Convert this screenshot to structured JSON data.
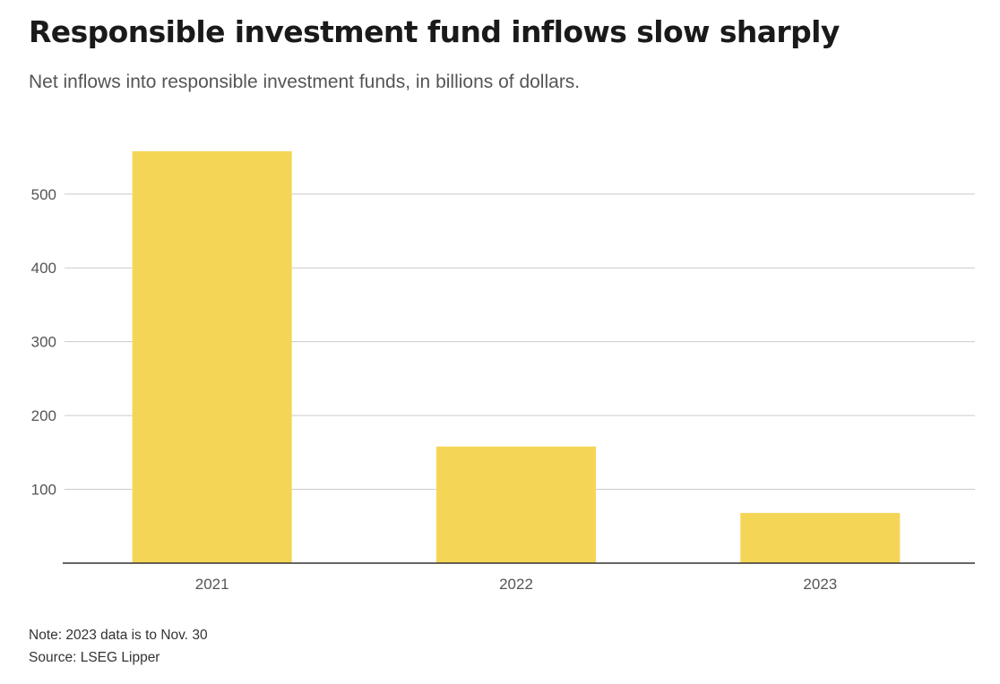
{
  "header": {
    "title": "Responsible investment fund inflows slow sharply",
    "subtitle": "Net inflows into responsible investment funds, in billions of dollars."
  },
  "footer": {
    "note": "Note: 2023 data is to Nov. 30",
    "source": "Source: LSEG Lipper"
  },
  "colors": {
    "bar": "#f5d555",
    "grid": "#cccccc",
    "axis": "#333333"
  },
  "chart_data": {
    "type": "bar",
    "title": "Responsible investment fund inflows slow sharply",
    "subtitle": "Net inflows into responsible investment funds, in billions of dollars.",
    "xlabel": "",
    "ylabel": "",
    "categories": [
      "2021",
      "2022",
      "2023"
    ],
    "values": [
      558,
      158,
      68
    ],
    "ylim": [
      0,
      580
    ],
    "yticks": [
      100,
      200,
      300,
      400,
      500
    ],
    "grid": true,
    "legend": "none"
  }
}
